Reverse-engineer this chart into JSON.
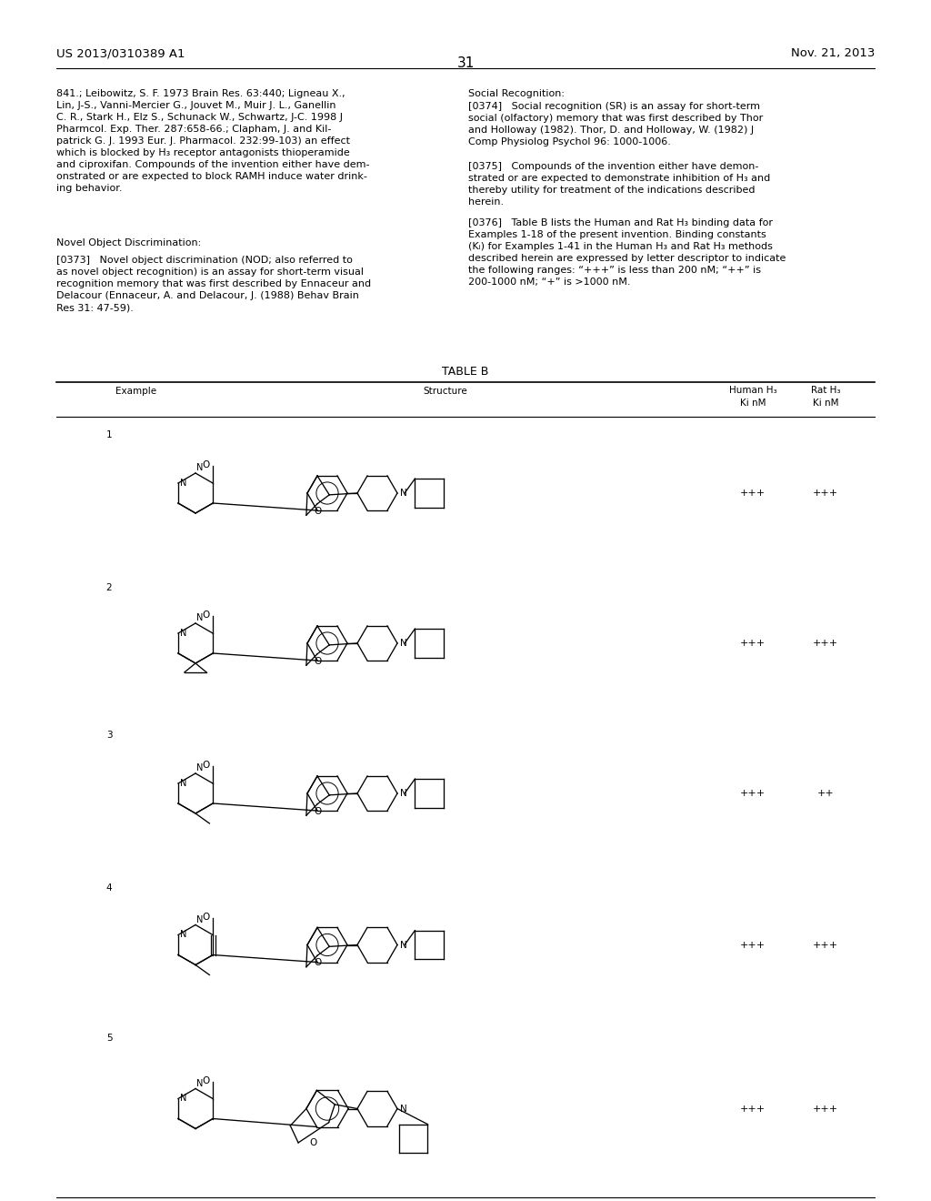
{
  "background_color": "#ffffff",
  "header_left": "US 2013/0310389 A1",
  "header_right": "Nov. 21, 2013",
  "page_number": "31",
  "table_title": "TABLE B",
  "table_rows": [
    {
      "example": "1",
      "human_ki": "+++",
      "rat_ki": "+++"
    },
    {
      "example": "2",
      "human_ki": "+++",
      "rat_ki": "+++"
    },
    {
      "example": "3",
      "human_ki": "+++",
      "rat_ki": "++"
    },
    {
      "example": "4",
      "human_ki": "+++",
      "rat_ki": "+++"
    },
    {
      "example": "5",
      "human_ki": "+++",
      "rat_ki": "+++"
    }
  ]
}
